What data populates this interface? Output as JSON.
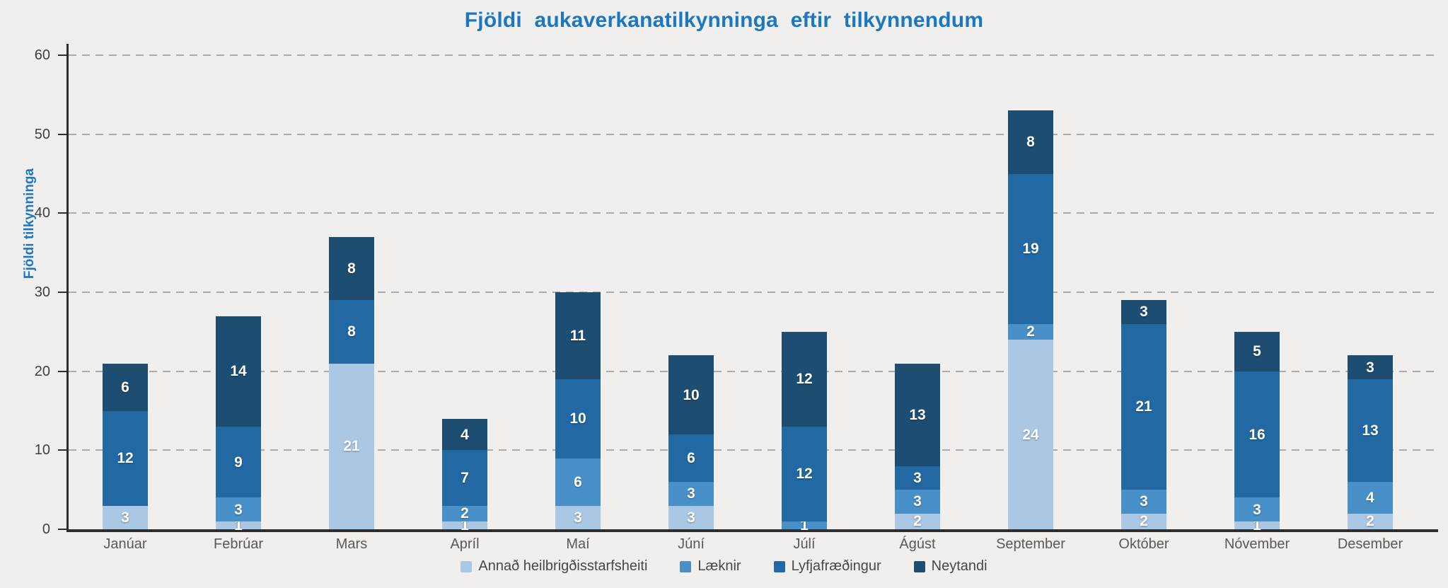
{
  "title": "Fjöldi aukaverkanatilkynninga eftir tilkynnendum",
  "chart_data": {
    "type": "bar",
    "stacked": true,
    "title": "Fjöldi aukaverkanatilkynninga eftir tilkynnendum",
    "xlabel": "",
    "ylabel": "Fjöldi tilkynninga",
    "ylim": [
      0,
      60
    ],
    "yticks": [
      0,
      10,
      20,
      30,
      40,
      50,
      60
    ],
    "grid": "horizontal-dashed",
    "legend_position": "bottom",
    "categories": [
      "Janúar",
      "Febrúar",
      "Mars",
      "Apríl",
      "Maí",
      "Júní",
      "Júlí",
      "Ágúst",
      "September",
      "Október",
      "Nóvember",
      "Desember"
    ],
    "series": [
      {
        "name": "Annað heilbrigðisstarfsheiti",
        "color": "#aac7e4",
        "values": [
          3,
          1,
          21,
          1,
          3,
          3,
          0,
          2,
          24,
          2,
          1,
          2
        ]
      },
      {
        "name": "Læknir",
        "color": "#4a90c8",
        "values": [
          0,
          3,
          0,
          2,
          6,
          3,
          1,
          3,
          2,
          3,
          3,
          4
        ]
      },
      {
        "name": "Lyfjafræðingur",
        "color": "#2269a3",
        "values": [
          12,
          9,
          8,
          7,
          10,
          6,
          12,
          3,
          19,
          21,
          16,
          13
        ]
      },
      {
        "name": "Neytandi",
        "color": "#1e4d72",
        "values": [
          6,
          14,
          8,
          4,
          11,
          10,
          12,
          13,
          8,
          3,
          5,
          3
        ]
      }
    ],
    "totals": [
      21,
      27,
      37,
      14,
      30,
      22,
      25,
      21,
      53,
      29,
      25,
      22
    ]
  },
  "colors": {
    "background": "#f0efed",
    "title_text": "#1b78c0",
    "axis": "#2e2e2e",
    "gridline": "#ababab",
    "tick_text": "#3f3f3f",
    "month_text": "#595959",
    "legend_text": "#474747",
    "bar_label": "#ffffff"
  }
}
